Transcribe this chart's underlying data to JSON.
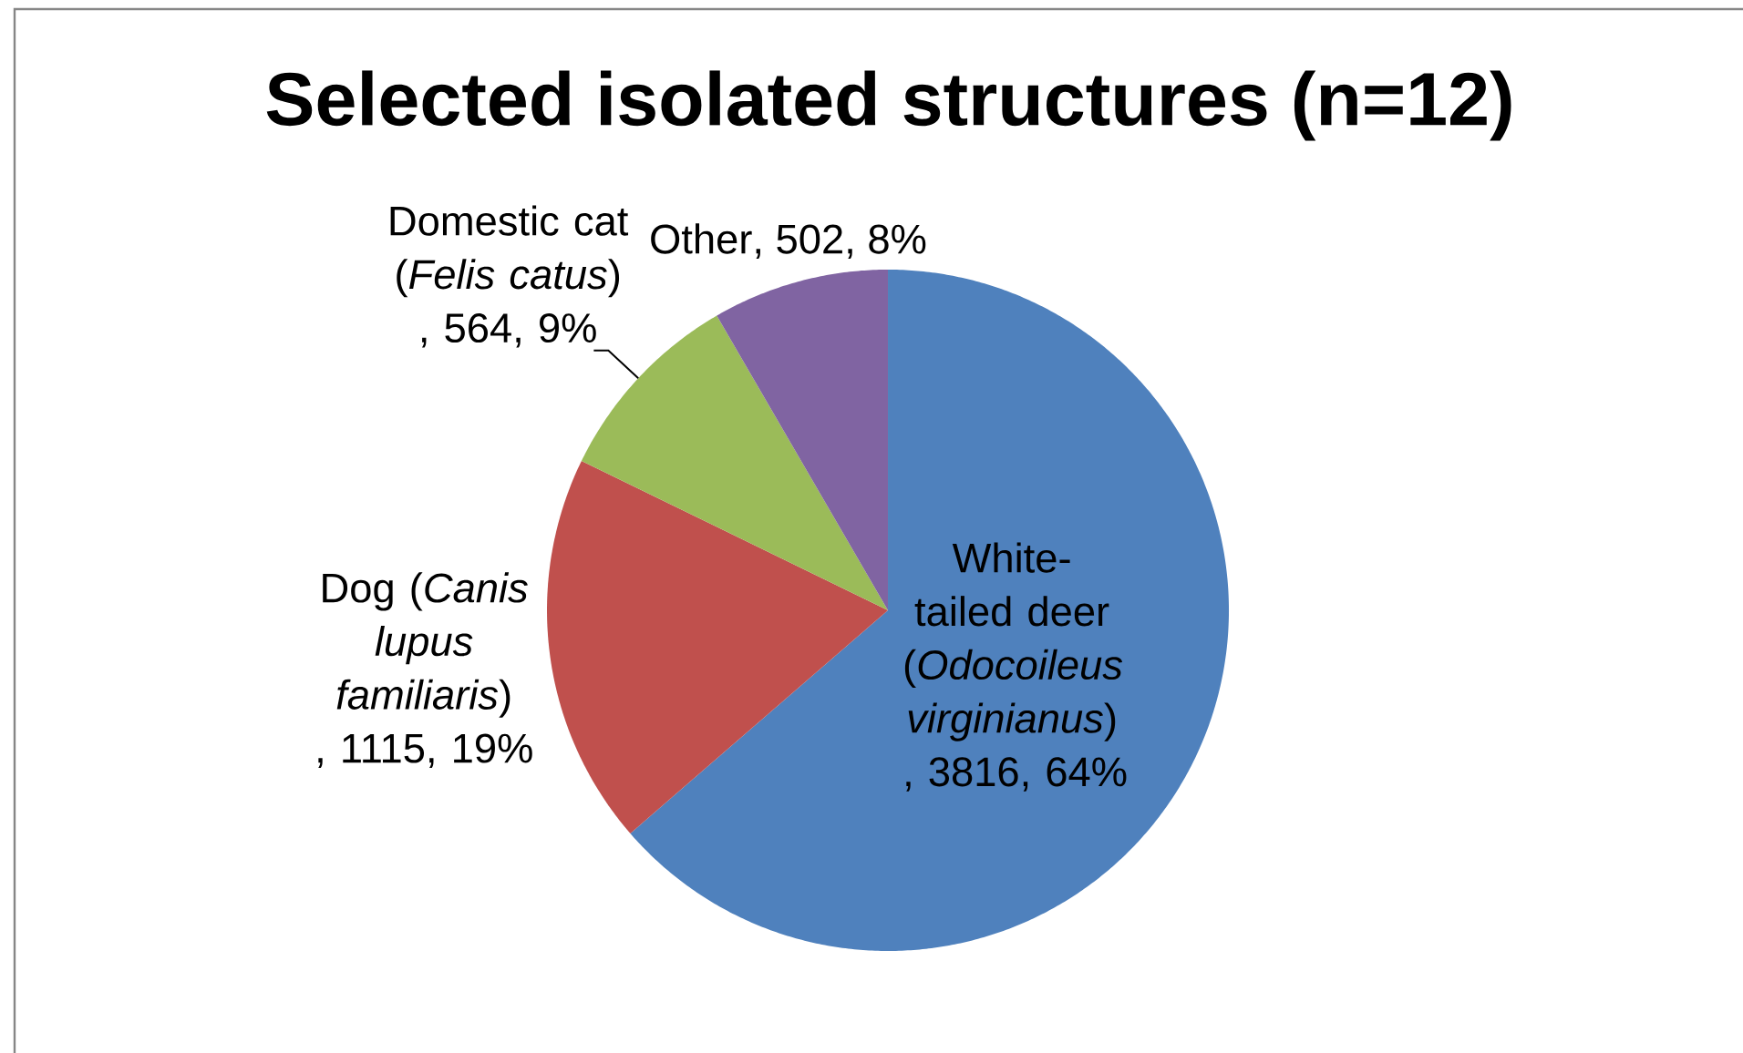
{
  "chart_data": {
    "type": "pie",
    "title": "Selected isolated structures (n=12)",
    "categories": [
      "White-tailed deer (*Odocoileus virginianus*)",
      "Dog (*Canis lupus familiaris*)",
      "Domestic cat (*Felis catus*)",
      "Other"
    ],
    "values": [
      3816,
      1115,
      564,
      502
    ],
    "colors": [
      "#4f81bd",
      "#c0504d",
      "#9bbb59",
      "#8064a2"
    ],
    "value_labels": [
      ", 3816, 64%",
      ", 1115, 19%",
      ", 564, 9%",
      ", 502, 8%"
    ]
  }
}
